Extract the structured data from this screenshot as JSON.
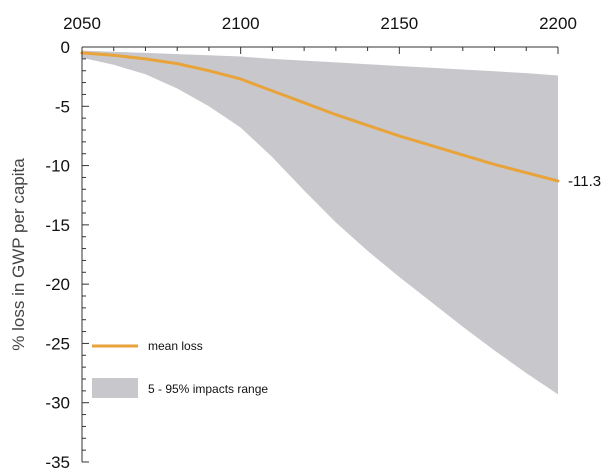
{
  "chart_data": {
    "type": "area",
    "xlabel": "",
    "ylabel": "% loss in GWP per capita",
    "xlim": [
      2050,
      2200
    ],
    "ylim": [
      -35,
      0
    ],
    "x_axis_position": "top",
    "grid": false,
    "legend_placement": "bottom-left",
    "x_ticks": [
      "2050",
      "2100",
      "2150",
      "2200"
    ],
    "y_ticks": [
      "0",
      "-5",
      "-10",
      "-15",
      "-20",
      "-25",
      "-30",
      "-35"
    ],
    "series": [
      {
        "name": "mean loss",
        "kind": "line",
        "color": "#e8a33a",
        "x": [
          2050,
          2060,
          2070,
          2080,
          2090,
          2100,
          2110,
          2120,
          2130,
          2140,
          2150,
          2160,
          2170,
          2180,
          2190,
          2200
        ],
        "y": [
          -0.5,
          -0.7,
          -1.0,
          -1.4,
          -2.0,
          -2.7,
          -3.7,
          -4.7,
          -5.7,
          -6.6,
          -7.5,
          -8.3,
          -9.1,
          -9.9,
          -10.6,
          -11.3
        ]
      },
      {
        "name": "5 - 95% impacts range",
        "kind": "band",
        "color": "#c8c8cc",
        "x": [
          2050,
          2060,
          2070,
          2080,
          2090,
          2100,
          2110,
          2120,
          2130,
          2140,
          2150,
          2160,
          2170,
          2180,
          2190,
          2200
        ],
        "lower": [
          -0.9,
          -1.5,
          -2.3,
          -3.5,
          -5.0,
          -6.8,
          -9.3,
          -12.1,
          -14.8,
          -17.2,
          -19.4,
          -21.5,
          -23.6,
          -25.6,
          -27.5,
          -29.3
        ],
        "upper": [
          -0.3,
          -0.4,
          -0.5,
          -0.6,
          -0.7,
          -0.8,
          -1.0,
          -1.15,
          -1.3,
          -1.45,
          -1.6,
          -1.75,
          -1.9,
          -2.05,
          -2.2,
          -2.4
        ]
      }
    ],
    "annotations": [
      {
        "text": "-11.3",
        "x": 2200,
        "y": -11.3
      }
    ]
  }
}
